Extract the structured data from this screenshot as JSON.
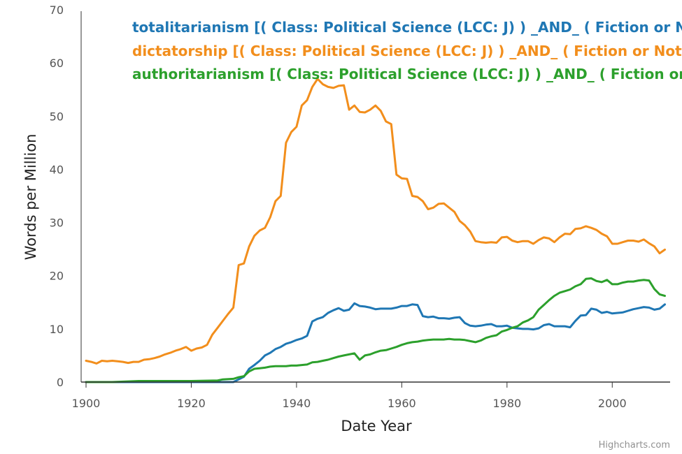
{
  "chart_data": {
    "type": "line",
    "title": "",
    "xlabel": "Date Year",
    "ylabel": "Words per Million",
    "xlim": [
      1900,
      2010
    ],
    "ylim": [
      0,
      70
    ],
    "x_ticks": [
      1900,
      1920,
      1940,
      1960,
      1980,
      2000
    ],
    "y_ticks": [
      0,
      10,
      20,
      30,
      40,
      50,
      60,
      70
    ],
    "grid": false,
    "legend_position": "top",
    "series": [
      {
        "name": "totalitarianism [( Class: Political Science (LCC: J) ) _AND_ ( Fiction or Not",
        "color": "#1f77b4",
        "points": [
          [
            1900,
            0
          ],
          [
            1905,
            0
          ],
          [
            1910,
            0
          ],
          [
            1915,
            0
          ],
          [
            1920,
            0
          ],
          [
            1925,
            0
          ],
          [
            1928,
            0
          ],
          [
            1929,
            0.5
          ],
          [
            1930,
            1
          ],
          [
            1931,
            2.5
          ],
          [
            1932,
            3.2
          ],
          [
            1933,
            4
          ],
          [
            1934,
            5
          ],
          [
            1935,
            5.5
          ],
          [
            1936,
            6.2
          ],
          [
            1937,
            6.6
          ],
          [
            1938,
            7.2
          ],
          [
            1939,
            7.5
          ],
          [
            1940,
            7.9
          ],
          [
            1941,
            8.2
          ],
          [
            1942,
            8.7
          ],
          [
            1943,
            11.4
          ],
          [
            1944,
            11.9
          ],
          [
            1945,
            12.2
          ],
          [
            1946,
            13
          ],
          [
            1947,
            13.5
          ],
          [
            1948,
            13.9
          ],
          [
            1949,
            13.4
          ],
          [
            1950,
            13.6
          ],
          [
            1951,
            14.8
          ],
          [
            1952,
            14.3
          ],
          [
            1953,
            14.2
          ],
          [
            1954,
            14
          ],
          [
            1955,
            13.7
          ],
          [
            1956,
            13.8
          ],
          [
            1957,
            13.8
          ],
          [
            1958,
            13.8
          ],
          [
            1959,
            14
          ],
          [
            1960,
            14.3
          ],
          [
            1961,
            14.3
          ],
          [
            1962,
            14.6
          ],
          [
            1963,
            14.5
          ],
          [
            1964,
            12.4
          ],
          [
            1965,
            12.2
          ],
          [
            1966,
            12.3
          ],
          [
            1967,
            12
          ],
          [
            1968,
            12
          ],
          [
            1969,
            11.9
          ],
          [
            1970,
            12.1
          ],
          [
            1971,
            12.2
          ],
          [
            1972,
            11.1
          ],
          [
            1973,
            10.6
          ],
          [
            1974,
            10.5
          ],
          [
            1975,
            10.6
          ],
          [
            1976,
            10.8
          ],
          [
            1977,
            10.9
          ],
          [
            1978,
            10.5
          ],
          [
            1979,
            10.5
          ],
          [
            1980,
            10.6
          ],
          [
            1981,
            10.2
          ],
          [
            1982,
            10.1
          ],
          [
            1983,
            10
          ],
          [
            1984,
            10
          ],
          [
            1985,
            9.9
          ],
          [
            1986,
            10.1
          ],
          [
            1987,
            10.7
          ],
          [
            1988,
            10.9
          ],
          [
            1989,
            10.5
          ],
          [
            1990,
            10.5
          ],
          [
            1991,
            10.5
          ],
          [
            1992,
            10.3
          ],
          [
            1993,
            11.5
          ],
          [
            1994,
            12.5
          ],
          [
            1995,
            12.6
          ],
          [
            1996,
            13.8
          ],
          [
            1997,
            13.6
          ],
          [
            1998,
            13
          ],
          [
            1999,
            13.2
          ],
          [
            2000,
            12.9
          ],
          [
            2001,
            13
          ],
          [
            2002,
            13.1
          ],
          [
            2003,
            13.4
          ],
          [
            2004,
            13.7
          ],
          [
            2005,
            13.9
          ],
          [
            2006,
            14.1
          ],
          [
            2007,
            14
          ],
          [
            2008,
            13.6
          ],
          [
            2009,
            13.8
          ],
          [
            2010,
            14.6
          ]
        ]
      },
      {
        "name": "dictatorship [( Class: Political Science (LCC: J) ) _AND_ ( Fiction or Not Fi",
        "color": "#f28e1c",
        "points": [
          [
            1900,
            4
          ],
          [
            1901,
            3.8
          ],
          [
            1902,
            3.5
          ],
          [
            1903,
            4
          ],
          [
            1904,
            3.9
          ],
          [
            1905,
            4
          ],
          [
            1906,
            3.9
          ],
          [
            1907,
            3.8
          ],
          [
            1908,
            3.6
          ],
          [
            1909,
            3.8
          ],
          [
            1910,
            3.8
          ],
          [
            1911,
            4.2
          ],
          [
            1912,
            4.3
          ],
          [
            1913,
            4.5
          ],
          [
            1914,
            4.8
          ],
          [
            1915,
            5.2
          ],
          [
            1916,
            5.5
          ],
          [
            1917,
            5.9
          ],
          [
            1918,
            6.2
          ],
          [
            1919,
            6.6
          ],
          [
            1920,
            5.9
          ],
          [
            1921,
            6.3
          ],
          [
            1922,
            6.5
          ],
          [
            1923,
            7
          ],
          [
            1924,
            8.9
          ],
          [
            1925,
            10.2
          ],
          [
            1926,
            11.5
          ],
          [
            1927,
            12.8
          ],
          [
            1928,
            14
          ],
          [
            1929,
            22
          ],
          [
            1930,
            22.3
          ],
          [
            1931,
            25.5
          ],
          [
            1932,
            27.5
          ],
          [
            1933,
            28.5
          ],
          [
            1934,
            29
          ],
          [
            1935,
            31
          ],
          [
            1936,
            34
          ],
          [
            1937,
            35
          ],
          [
            1938,
            45
          ],
          [
            1939,
            47
          ],
          [
            1940,
            48
          ],
          [
            1941,
            52
          ],
          [
            1942,
            53
          ],
          [
            1943,
            55.5
          ],
          [
            1944,
            57
          ],
          [
            1945,
            56
          ],
          [
            1946,
            55.5
          ],
          [
            1947,
            55.3
          ],
          [
            1948,
            55.7
          ],
          [
            1949,
            55.8
          ],
          [
            1950,
            51.2
          ],
          [
            1951,
            52
          ],
          [
            1952,
            50.8
          ],
          [
            1953,
            50.7
          ],
          [
            1954,
            51.2
          ],
          [
            1955,
            52
          ],
          [
            1956,
            51
          ],
          [
            1957,
            49
          ],
          [
            1958,
            48.5
          ],
          [
            1959,
            39
          ],
          [
            1960,
            38.3
          ],
          [
            1961,
            38.2
          ],
          [
            1962,
            35
          ],
          [
            1963,
            34.8
          ],
          [
            1964,
            34
          ],
          [
            1965,
            32.5
          ],
          [
            1966,
            32.8
          ],
          [
            1967,
            33.5
          ],
          [
            1968,
            33.6
          ],
          [
            1969,
            32.8
          ],
          [
            1970,
            32
          ],
          [
            1971,
            30.3
          ],
          [
            1972,
            29.5
          ],
          [
            1973,
            28.3
          ],
          [
            1974,
            26.5
          ],
          [
            1975,
            26.3
          ],
          [
            1976,
            26.2
          ],
          [
            1977,
            26.3
          ],
          [
            1978,
            26.2
          ],
          [
            1979,
            27.2
          ],
          [
            1980,
            27.3
          ],
          [
            1981,
            26.6
          ],
          [
            1982,
            26.3
          ],
          [
            1983,
            26.5
          ],
          [
            1984,
            26.5
          ],
          [
            1985,
            26
          ],
          [
            1986,
            26.7
          ],
          [
            1987,
            27.2
          ],
          [
            1988,
            27
          ],
          [
            1989,
            26.3
          ],
          [
            1990,
            27.2
          ],
          [
            1991,
            27.9
          ],
          [
            1992,
            27.8
          ],
          [
            1993,
            28.8
          ],
          [
            1994,
            28.9
          ],
          [
            1995,
            29.3
          ],
          [
            1996,
            29
          ],
          [
            1997,
            28.6
          ],
          [
            1998,
            27.9
          ],
          [
            1999,
            27.4
          ],
          [
            2000,
            26
          ],
          [
            2001,
            26
          ],
          [
            2002,
            26.3
          ],
          [
            2003,
            26.6
          ],
          [
            2004,
            26.6
          ],
          [
            2005,
            26.4
          ],
          [
            2006,
            26.8
          ],
          [
            2007,
            26.1
          ],
          [
            2008,
            25.5
          ],
          [
            2009,
            24.2
          ],
          [
            2010,
            24.9
          ]
        ]
      },
      {
        "name": "authoritarianism [( Class: Political Science (LCC: J) ) _AND_ ( Fiction or N",
        "color": "#2ca02c",
        "points": [
          [
            1900,
            0
          ],
          [
            1905,
            0
          ],
          [
            1910,
            0.2
          ],
          [
            1915,
            0.2
          ],
          [
            1920,
            0.2
          ],
          [
            1925,
            0.3
          ],
          [
            1926,
            0.5
          ],
          [
            1928,
            0.6
          ],
          [
            1929,
            0.9
          ],
          [
            1930,
            1.1
          ],
          [
            1931,
            2
          ],
          [
            1932,
            2.5
          ],
          [
            1933,
            2.6
          ],
          [
            1934,
            2.7
          ],
          [
            1935,
            2.9
          ],
          [
            1936,
            3
          ],
          [
            1937,
            3
          ],
          [
            1938,
            3
          ],
          [
            1939,
            3.1
          ],
          [
            1940,
            3.1
          ],
          [
            1941,
            3.2
          ],
          [
            1942,
            3.3
          ],
          [
            1943,
            3.7
          ],
          [
            1944,
            3.8
          ],
          [
            1945,
            4
          ],
          [
            1946,
            4.2
          ],
          [
            1947,
            4.5
          ],
          [
            1948,
            4.8
          ],
          [
            1949,
            5
          ],
          [
            1950,
            5.2
          ],
          [
            1951,
            5.4
          ],
          [
            1952,
            4.2
          ],
          [
            1953,
            5
          ],
          [
            1954,
            5.2
          ],
          [
            1955,
            5.6
          ],
          [
            1956,
            5.9
          ],
          [
            1957,
            6
          ],
          [
            1958,
            6.3
          ],
          [
            1959,
            6.6
          ],
          [
            1960,
            7
          ],
          [
            1961,
            7.3
          ],
          [
            1962,
            7.5
          ],
          [
            1963,
            7.6
          ],
          [
            1964,
            7.8
          ],
          [
            1965,
            7.9
          ],
          [
            1966,
            8
          ],
          [
            1967,
            8
          ],
          [
            1968,
            8
          ],
          [
            1969,
            8.1
          ],
          [
            1970,
            8
          ],
          [
            1971,
            8
          ],
          [
            1972,
            7.9
          ],
          [
            1973,
            7.7
          ],
          [
            1974,
            7.5
          ],
          [
            1975,
            7.8
          ],
          [
            1976,
            8.3
          ],
          [
            1977,
            8.6
          ],
          [
            1978,
            8.8
          ],
          [
            1979,
            9.5
          ],
          [
            1980,
            9.8
          ],
          [
            1981,
            10.2
          ],
          [
            1982,
            10.5
          ],
          [
            1983,
            11.2
          ],
          [
            1984,
            11.6
          ],
          [
            1985,
            12.2
          ],
          [
            1986,
            13.6
          ],
          [
            1987,
            14.5
          ],
          [
            1988,
            15.4
          ],
          [
            1989,
            16.2
          ],
          [
            1990,
            16.8
          ],
          [
            1991,
            17.1
          ],
          [
            1992,
            17.4
          ],
          [
            1993,
            18
          ],
          [
            1994,
            18.4
          ],
          [
            1995,
            19.4
          ],
          [
            1996,
            19.5
          ],
          [
            1997,
            19
          ],
          [
            1998,
            18.8
          ],
          [
            1999,
            19.2
          ],
          [
            2000,
            18.4
          ],
          [
            2001,
            18.4
          ],
          [
            2002,
            18.7
          ],
          [
            2003,
            18.9
          ],
          [
            2004,
            18.9
          ],
          [
            2005,
            19.1
          ],
          [
            2006,
            19.2
          ],
          [
            2007,
            19.1
          ],
          [
            2008,
            17.5
          ],
          [
            2009,
            16.5
          ],
          [
            2010,
            16.2
          ]
        ]
      }
    ]
  },
  "credit": "Highcharts.com"
}
